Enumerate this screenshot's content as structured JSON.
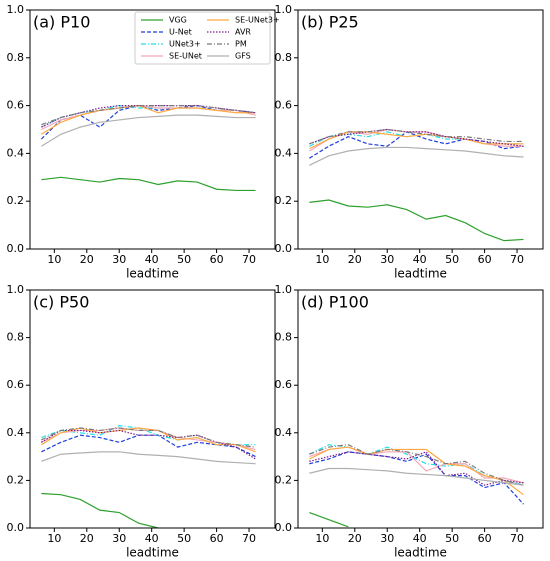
{
  "chart_data": [
    {
      "type": "line",
      "title": "(a) P10",
      "xlabel": "leadtime",
      "legend": "upper center",
      "x": [
        6,
        12,
        18,
        24,
        30,
        36,
        42,
        48,
        54,
        60,
        66,
        72
      ],
      "xlim": [
        2.5,
        78
      ],
      "ylim": [
        0,
        1
      ],
      "xticks": [
        10,
        20,
        30,
        40,
        50,
        60,
        70
      ],
      "yticks": [
        {
          "value": 0,
          "label": "0.0"
        },
        {
          "value": 0.2,
          "label": "0.2"
        },
        {
          "value": 0.4,
          "label": "0.4"
        },
        {
          "value": 0.6,
          "label": "0.6"
        },
        {
          "value": 0.8,
          "label": "0.8"
        },
        {
          "value": 1,
          "label": "1.0"
        }
      ],
      "series": [
        {
          "name": "VGG",
          "color": "#2ca02c",
          "linestyle": "solid",
          "values": [
            0.29,
            0.3,
            0.29,
            0.28,
            0.295,
            0.29,
            0.27,
            0.285,
            0.28,
            0.25,
            0.245,
            0.245
          ]
        },
        {
          "name": "U-Net",
          "color": "#1f3fdc",
          "linestyle": "dashed",
          "values": [
            0.46,
            0.54,
            0.56,
            0.51,
            0.58,
            0.6,
            0.58,
            0.59,
            0.6,
            0.58,
            0.58,
            0.57
          ]
        },
        {
          "name": "UNet3+",
          "color": "#22e0e8",
          "linestyle": "dashdot",
          "values": [
            0.51,
            0.55,
            0.57,
            0.58,
            0.6,
            0.59,
            0.59,
            0.59,
            0.59,
            0.58,
            0.58,
            0.57
          ]
        },
        {
          "name": "SE-UNet",
          "color": "#f7a8b8",
          "linestyle": "solid",
          "values": [
            0.5,
            0.54,
            0.56,
            0.58,
            0.59,
            0.6,
            0.59,
            0.59,
            0.59,
            0.58,
            0.58,
            0.56
          ]
        },
        {
          "name": "SE-UNet3+",
          "color": "#ffa940",
          "linestyle": "solid",
          "values": [
            0.48,
            0.53,
            0.56,
            0.58,
            0.59,
            0.6,
            0.57,
            0.59,
            0.59,
            0.58,
            0.57,
            0.57
          ]
        },
        {
          "name": "AVR",
          "color": "#7b1c8c",
          "linestyle": "dotted",
          "values": [
            0.51,
            0.55,
            0.57,
            0.59,
            0.6,
            0.6,
            0.6,
            0.6,
            0.6,
            0.59,
            0.58,
            0.57
          ]
        },
        {
          "name": "PM",
          "color": "#7a7a7a",
          "linestyle": "dashdot",
          "values": [
            0.52,
            0.55,
            0.57,
            0.58,
            0.59,
            0.6,
            0.6,
            0.6,
            0.6,
            0.59,
            0.58,
            0.57
          ]
        },
        {
          "name": "GFS",
          "color": "#b0b0b0",
          "linestyle": "solid",
          "values": [
            0.43,
            0.48,
            0.51,
            0.53,
            0.54,
            0.55,
            0.555,
            0.56,
            0.56,
            0.555,
            0.55,
            0.55
          ]
        }
      ]
    },
    {
      "type": "line",
      "title": "(b) P25",
      "xlabel": "leadtime",
      "x": [
        6,
        12,
        18,
        24,
        30,
        36,
        42,
        48,
        54,
        60,
        66,
        72
      ],
      "xlim": [
        2.5,
        78
      ],
      "ylim": [
        0,
        1
      ],
      "xticks": [
        10,
        20,
        30,
        40,
        50,
        60,
        70
      ],
      "yticks": [
        {
          "value": 0,
          "label": "0.0"
        },
        {
          "value": 0.2,
          "label": "0.2"
        },
        {
          "value": 0.4,
          "label": "0.4"
        },
        {
          "value": 0.6,
          "label": "0.6"
        },
        {
          "value": 0.8,
          "label": "0.8"
        },
        {
          "value": 1,
          "label": "1.0"
        }
      ],
      "series": [
        {
          "name": "VGG",
          "color": "#2ca02c",
          "linestyle": "solid",
          "values": [
            0.195,
            0.205,
            0.18,
            0.175,
            0.185,
            0.165,
            0.125,
            0.14,
            0.11,
            0.065,
            0.035,
            0.04
          ]
        },
        {
          "name": "U-Net",
          "color": "#1f3fdc",
          "linestyle": "dashed",
          "values": [
            0.38,
            0.43,
            0.47,
            0.44,
            0.43,
            0.49,
            0.46,
            0.44,
            0.46,
            0.45,
            0.42,
            0.43
          ]
        },
        {
          "name": "UNet3+",
          "color": "#22e0e8",
          "linestyle": "dashdot",
          "values": [
            0.43,
            0.47,
            0.48,
            0.47,
            0.49,
            0.47,
            0.48,
            0.46,
            0.46,
            0.44,
            0.44,
            0.44
          ]
        },
        {
          "name": "SE-UNet",
          "color": "#f7a8b8",
          "linestyle": "solid",
          "values": [
            0.41,
            0.46,
            0.49,
            0.48,
            0.5,
            0.49,
            0.49,
            0.47,
            0.46,
            0.44,
            0.43,
            0.43
          ]
        },
        {
          "name": "SE-UNet3+",
          "color": "#ffa940",
          "linestyle": "solid",
          "values": [
            0.42,
            0.46,
            0.49,
            0.49,
            0.48,
            0.47,
            0.48,
            0.47,
            0.46,
            0.44,
            0.44,
            0.44
          ]
        },
        {
          "name": "AVR",
          "color": "#7b1c8c",
          "linestyle": "dotted",
          "values": [
            0.44,
            0.47,
            0.48,
            0.49,
            0.5,
            0.49,
            0.49,
            0.47,
            0.46,
            0.45,
            0.44,
            0.43
          ]
        },
        {
          "name": "PM",
          "color": "#7a7a7a",
          "linestyle": "dashdot",
          "values": [
            0.44,
            0.47,
            0.49,
            0.49,
            0.5,
            0.49,
            0.48,
            0.47,
            0.47,
            0.46,
            0.45,
            0.45
          ]
        },
        {
          "name": "GFS",
          "color": "#b0b0b0",
          "linestyle": "solid",
          "values": [
            0.35,
            0.39,
            0.41,
            0.42,
            0.425,
            0.425,
            0.42,
            0.415,
            0.41,
            0.4,
            0.39,
            0.385
          ]
        }
      ]
    },
    {
      "type": "line",
      "title": "(c) P50",
      "xlabel": "leadtime",
      "x": [
        6,
        12,
        18,
        24,
        30,
        36,
        42,
        48,
        54,
        60,
        66,
        72
      ],
      "xlim": [
        2.5,
        78
      ],
      "ylim": [
        0,
        1
      ],
      "xticks": [
        10,
        20,
        30,
        40,
        50,
        60,
        70
      ],
      "yticks": [
        {
          "value": 0,
          "label": "0.0"
        },
        {
          "value": 0.2,
          "label": "0.2"
        },
        {
          "value": 0.4,
          "label": "0.4"
        },
        {
          "value": 0.6,
          "label": "0.6"
        },
        {
          "value": 0.8,
          "label": "0.8"
        },
        {
          "value": 1,
          "label": "1.0"
        }
      ],
      "series": [
        {
          "name": "VGG",
          "color": "#2ca02c",
          "linestyle": "solid",
          "values": [
            0.145,
            0.14,
            0.12,
            0.075,
            0.065,
            0.02,
            0.0,
            null,
            null,
            null,
            null,
            null
          ]
        },
        {
          "name": "U-Net",
          "color": "#1f3fdc",
          "linestyle": "dashed",
          "values": [
            0.32,
            0.36,
            0.39,
            0.38,
            0.36,
            0.39,
            0.39,
            0.34,
            0.36,
            0.35,
            0.34,
            0.3
          ]
        },
        {
          "name": "UNet3+",
          "color": "#22e0e8",
          "linestyle": "dashdot",
          "values": [
            0.38,
            0.41,
            0.4,
            0.39,
            0.43,
            0.42,
            0.39,
            0.37,
            0.38,
            0.35,
            0.35,
            0.35
          ]
        },
        {
          "name": "SE-UNet",
          "color": "#f7a8b8",
          "linestyle": "solid",
          "values": [
            0.36,
            0.4,
            0.41,
            0.41,
            0.42,
            0.41,
            0.41,
            0.38,
            0.37,
            0.36,
            0.35,
            0.33
          ]
        },
        {
          "name": "SE-UNet3+",
          "color": "#ffa940",
          "linestyle": "solid",
          "values": [
            0.35,
            0.4,
            0.42,
            0.4,
            0.41,
            0.42,
            0.41,
            0.37,
            0.38,
            0.35,
            0.35,
            0.32
          ]
        },
        {
          "name": "AVR",
          "color": "#7b1c8c",
          "linestyle": "dotted",
          "values": [
            0.36,
            0.41,
            0.41,
            0.4,
            0.41,
            0.39,
            0.39,
            0.38,
            0.39,
            0.36,
            0.34,
            0.29
          ]
        },
        {
          "name": "PM",
          "color": "#7a7a7a",
          "linestyle": "dashdot",
          "values": [
            0.37,
            0.41,
            0.42,
            0.41,
            0.42,
            0.41,
            0.41,
            0.38,
            0.39,
            0.36,
            0.35,
            0.34
          ]
        },
        {
          "name": "GFS",
          "color": "#b0b0b0",
          "linestyle": "solid",
          "values": [
            0.28,
            0.31,
            0.315,
            0.32,
            0.32,
            0.31,
            0.305,
            0.3,
            0.29,
            0.28,
            0.275,
            0.27
          ]
        }
      ]
    },
    {
      "type": "line",
      "title": "(d) P100",
      "xlabel": "leadtime",
      "x": [
        6,
        12,
        18,
        24,
        30,
        36,
        42,
        48,
        54,
        60,
        66,
        72
      ],
      "xlim": [
        2.5,
        78
      ],
      "ylim": [
        0,
        1
      ],
      "xticks": [
        10,
        20,
        30,
        40,
        50,
        60,
        70
      ],
      "yticks": [
        {
          "value": 0,
          "label": "0.0"
        },
        {
          "value": 0.2,
          "label": "0.2"
        },
        {
          "value": 0.4,
          "label": "0.4"
        },
        {
          "value": 0.6,
          "label": "0.6"
        },
        {
          "value": 0.8,
          "label": "0.8"
        },
        {
          "value": 1,
          "label": "1.0"
        }
      ],
      "series": [
        {
          "name": "VGG",
          "color": "#2ca02c",
          "linestyle": "solid",
          "values": [
            0.065,
            0.035,
            0.005,
            null,
            null,
            null,
            null,
            null,
            null,
            null,
            null,
            null
          ]
        },
        {
          "name": "U-Net",
          "color": "#1f3fdc",
          "linestyle": "dashed",
          "values": [
            0.27,
            0.29,
            0.32,
            0.31,
            0.3,
            0.28,
            0.31,
            0.22,
            0.22,
            0.17,
            0.19,
            0.1
          ]
        },
        {
          "name": "UNet3+",
          "color": "#22e0e8",
          "linestyle": "dashdot",
          "values": [
            0.31,
            0.35,
            0.34,
            0.31,
            0.34,
            0.31,
            0.27,
            0.26,
            0.27,
            0.22,
            0.2,
            0.18
          ]
        },
        {
          "name": "SE-UNet",
          "color": "#f7a8b8",
          "linestyle": "solid",
          "values": [
            0.3,
            0.33,
            0.34,
            0.31,
            0.32,
            0.32,
            0.24,
            0.27,
            0.27,
            0.21,
            0.21,
            0.19
          ]
        },
        {
          "name": "SE-UNet3+",
          "color": "#ffa940",
          "linestyle": "solid",
          "values": [
            0.29,
            0.33,
            0.34,
            0.31,
            0.33,
            0.33,
            0.33,
            0.27,
            0.26,
            0.22,
            0.2,
            0.14
          ]
        },
        {
          "name": "AVR",
          "color": "#7b1c8c",
          "linestyle": "dotted",
          "values": [
            0.28,
            0.3,
            0.32,
            0.31,
            0.3,
            0.29,
            0.32,
            0.22,
            0.23,
            0.18,
            0.2,
            0.19
          ]
        },
        {
          "name": "PM",
          "color": "#7a7a7a",
          "linestyle": "dashdot",
          "values": [
            0.31,
            0.34,
            0.35,
            0.31,
            0.33,
            0.32,
            0.3,
            0.27,
            0.28,
            0.23,
            0.2,
            0.18
          ]
        },
        {
          "name": "GFS",
          "color": "#b0b0b0",
          "linestyle": "solid",
          "values": [
            0.23,
            0.25,
            0.25,
            0.245,
            0.24,
            0.23,
            0.225,
            0.22,
            0.21,
            0.2,
            0.19,
            0.18
          ]
        }
      ]
    }
  ]
}
